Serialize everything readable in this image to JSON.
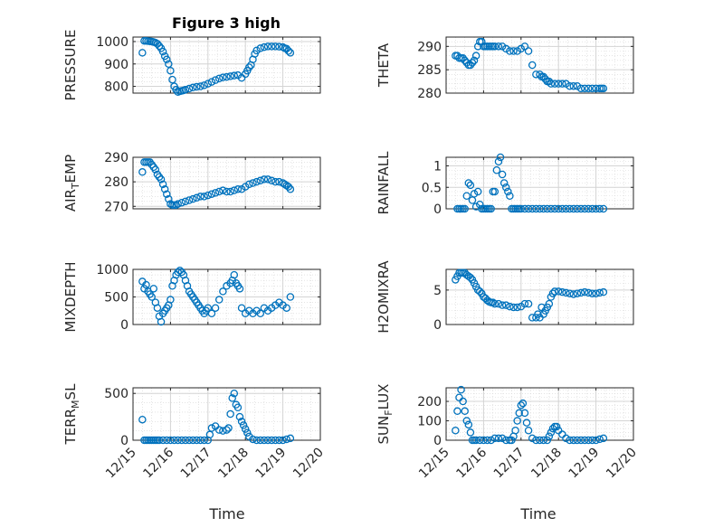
{
  "figure": {
    "title": "Figure 3 high"
  },
  "colors": {
    "marker": "#0072BD",
    "grid": "#d4d4d4",
    "axis": "#262626"
  },
  "chart_data": [
    {
      "type": "scatter",
      "ylabel": "PRESSURE",
      "ylim": [
        770,
        1020
      ],
      "yticks": [
        800,
        900,
        1000
      ],
      "xlim": [
        0,
        5
      ],
      "grid": true,
      "x": [
        0.25,
        0.3,
        0.35,
        0.4,
        0.45,
        0.5,
        0.55,
        0.6,
        0.65,
        0.7,
        0.75,
        0.8,
        0.85,
        0.9,
        0.95,
        1.0,
        1.05,
        1.1,
        1.15,
        1.2,
        1.25,
        1.3,
        1.35,
        1.4,
        1.5,
        1.6,
        1.7,
        1.8,
        1.9,
        2.0,
        2.1,
        2.2,
        2.3,
        2.4,
        2.5,
        2.6,
        2.7,
        2.8,
        2.9,
        3.0,
        3.05,
        3.1,
        3.15,
        3.2,
        3.25,
        3.3,
        3.4,
        3.5,
        3.6,
        3.7,
        3.8,
        3.9,
        4.0,
        4.05,
        4.1,
        4.15,
        4.2
      ],
      "y": [
        950,
        1003,
        1003,
        1002,
        1001,
        1000,
        998,
        995,
        990,
        980,
        970,
        955,
        935,
        920,
        900,
        870,
        830,
        800,
        785,
        775,
        778,
        780,
        782,
        785,
        790,
        795,
        798,
        800,
        805,
        812,
        820,
        828,
        835,
        840,
        842,
        845,
        848,
        850,
        838,
        855,
        870,
        885,
        895,
        920,
        945,
        960,
        970,
        975,
        978,
        978,
        978,
        977,
        975,
        970,
        968,
        958,
        950
      ]
    },
    {
      "type": "scatter",
      "ylabel": "THETA",
      "ylim": [
        280,
        292
      ],
      "yticks": [
        280,
        285,
        290
      ],
      "xlim": [
        0,
        5
      ],
      "grid": true,
      "x": [
        0.25,
        0.3,
        0.35,
        0.4,
        0.45,
        0.5,
        0.55,
        0.6,
        0.65,
        0.7,
        0.75,
        0.8,
        0.85,
        0.9,
        0.95,
        1.0,
        1.05,
        1.1,
        1.15,
        1.2,
        1.25,
        1.3,
        1.4,
        1.5,
        1.6,
        1.7,
        1.8,
        1.9,
        2.0,
        2.1,
        2.2,
        2.3,
        2.4,
        2.5,
        2.55,
        2.6,
        2.65,
        2.7,
        2.75,
        2.8,
        2.9,
        3.0,
        3.1,
        3.2,
        3.3,
        3.4,
        3.5,
        3.6,
        3.7,
        3.8,
        3.9,
        4.0,
        4.1,
        4.15,
        4.2
      ],
      "y": [
        288,
        288,
        287.5,
        287.5,
        287.5,
        287,
        286.5,
        286,
        286,
        286.5,
        287,
        288,
        290,
        291,
        291,
        290,
        290,
        290,
        290,
        290,
        290,
        290,
        290,
        290,
        289.5,
        289,
        289,
        289,
        289.5,
        290,
        289,
        286,
        284,
        284,
        283.5,
        283.5,
        283,
        282.5,
        282.5,
        282,
        282,
        282,
        282,
        282,
        281.5,
        281.5,
        281.5,
        281,
        281,
        281,
        281,
        281,
        281,
        281,
        281
      ]
    },
    {
      "type": "scatter",
      "ylabel": "AIR_TEMP",
      "ylabel_parts": {
        "main": "AIR",
        "sub": "T",
        "rest": "EMP"
      },
      "ylim": [
        269,
        290
      ],
      "yticks": [
        270,
        280,
        290
      ],
      "xlim": [
        0,
        5
      ],
      "grid": true,
      "x": [
        0.25,
        0.3,
        0.35,
        0.4,
        0.45,
        0.5,
        0.55,
        0.6,
        0.65,
        0.7,
        0.75,
        0.8,
        0.85,
        0.9,
        0.95,
        1.0,
        1.05,
        1.1,
        1.15,
        1.2,
        1.3,
        1.4,
        1.5,
        1.6,
        1.7,
        1.8,
        1.9,
        2.0,
        2.1,
        2.2,
        2.3,
        2.4,
        2.5,
        2.6,
        2.7,
        2.8,
        2.9,
        3.0,
        3.1,
        3.2,
        3.3,
        3.4,
        3.5,
        3.6,
        3.7,
        3.8,
        3.9,
        4.0,
        4.05,
        4.1,
        4.15,
        4.2
      ],
      "y": [
        284,
        288,
        288,
        288,
        288,
        287,
        286,
        285,
        283,
        282,
        281,
        279,
        277,
        275,
        273,
        271,
        270.5,
        270.5,
        270.5,
        271,
        271.5,
        272,
        272.5,
        273,
        273.5,
        274,
        274,
        274.5,
        275,
        275.5,
        276,
        276.5,
        276,
        276,
        276.5,
        277,
        277,
        278,
        279,
        279.5,
        280,
        280.5,
        281,
        281,
        280.5,
        280,
        280,
        279.5,
        279,
        278.5,
        278,
        277
      ]
    },
    {
      "type": "scatter",
      "ylabel": "RAINFALL",
      "ylim": [
        0,
        1.2
      ],
      "yticks": [
        0,
        0.5,
        1
      ],
      "xlim": [
        0,
        5
      ],
      "grid": true,
      "x": [
        0.3,
        0.35,
        0.4,
        0.45,
        0.5,
        0.55,
        0.6,
        0.65,
        0.7,
        0.75,
        0.8,
        0.85,
        0.9,
        0.95,
        1.0,
        1.05,
        1.1,
        1.15,
        1.2,
        1.25,
        1.3,
        1.35,
        1.4,
        1.45,
        1.5,
        1.55,
        1.6,
        1.65,
        1.7,
        1.75,
        1.8,
        1.85,
        1.9,
        1.95,
        2.0,
        2.1,
        2.2,
        2.3,
        2.4,
        2.5,
        2.6,
        2.7,
        2.8,
        2.9,
        3.0,
        3.1,
        3.2,
        3.3,
        3.4,
        3.5,
        3.6,
        3.7,
        3.8,
        3.9,
        4.0,
        4.1,
        4.2
      ],
      "y": [
        0,
        0,
        0,
        0,
        0,
        0.3,
        0.6,
        0.55,
        0.2,
        0.35,
        0.05,
        0.4,
        0.1,
        0,
        0,
        0,
        0,
        0,
        0,
        0.4,
        0.4,
        0.9,
        1.1,
        1.2,
        0.8,
        0.6,
        0.5,
        0.4,
        0.3,
        0,
        0,
        0,
        0,
        0,
        0,
        0,
        0,
        0,
        0,
        0,
        0,
        0,
        0,
        0,
        0,
        0,
        0,
        0,
        0,
        0,
        0,
        0,
        0,
        0,
        0,
        0,
        0
      ]
    },
    {
      "type": "scatter",
      "ylabel": "MIXDEPTH",
      "ylim": [
        0,
        1000
      ],
      "yticks": [
        0,
        500,
        1000
      ],
      "xlim": [
        0,
        5
      ],
      "grid": true,
      "x": [
        0.25,
        0.3,
        0.35,
        0.4,
        0.45,
        0.5,
        0.55,
        0.6,
        0.65,
        0.7,
        0.75,
        0.8,
        0.85,
        0.9,
        0.95,
        1.0,
        1.05,
        1.1,
        1.15,
        1.2,
        1.25,
        1.3,
        1.35,
        1.4,
        1.45,
        1.5,
        1.55,
        1.6,
        1.65,
        1.7,
        1.75,
        1.8,
        1.85,
        1.9,
        1.95,
        2.0,
        2.1,
        2.2,
        2.3,
        2.4,
        2.5,
        2.6,
        2.65,
        2.7,
        2.75,
        2.8,
        2.85,
        2.9,
        3.0,
        3.1,
        3.2,
        3.3,
        3.4,
        3.5,
        3.6,
        3.7,
        3.8,
        3.9,
        4.0,
        4.1,
        4.2
      ],
      "y": [
        780,
        650,
        720,
        600,
        550,
        500,
        650,
        400,
        300,
        150,
        50,
        200,
        250,
        300,
        350,
        450,
        700,
        800,
        900,
        950,
        980,
        950,
        900,
        800,
        700,
        600,
        550,
        500,
        450,
        400,
        350,
        300,
        250,
        200,
        250,
        300,
        200,
        300,
        450,
        600,
        700,
        750,
        800,
        900,
        750,
        700,
        650,
        300,
        200,
        250,
        200,
        250,
        200,
        300,
        250,
        300,
        350,
        400,
        350,
        300,
        500
      ]
    },
    {
      "type": "scatter",
      "ylabel": "H2OMIXRA",
      "ylim": [
        0,
        8
      ],
      "yticks": [
        0,
        5
      ],
      "xlim": [
        0,
        5
      ],
      "grid": true,
      "x": [
        0.25,
        0.3,
        0.35,
        0.4,
        0.45,
        0.5,
        0.55,
        0.6,
        0.65,
        0.7,
        0.75,
        0.8,
        0.85,
        0.9,
        0.95,
        1.0,
        1.05,
        1.1,
        1.15,
        1.2,
        1.25,
        1.3,
        1.4,
        1.5,
        1.6,
        1.7,
        1.8,
        1.9,
        2.0,
        2.1,
        2.2,
        2.3,
        2.4,
        2.45,
        2.5,
        2.55,
        2.6,
        2.65,
        2.7,
        2.75,
        2.8,
        2.85,
        2.9,
        3.0,
        3.1,
        3.2,
        3.3,
        3.4,
        3.5,
        3.6,
        3.7,
        3.8,
        3.9,
        4.0,
        4.1,
        4.2
      ],
      "y": [
        6.5,
        7,
        7.5,
        7.5,
        7.5,
        7.5,
        7.2,
        7,
        6.8,
        6.5,
        6,
        5.5,
        5,
        4.8,
        4.5,
        4,
        3.8,
        3.5,
        3.3,
        3.2,
        3.2,
        3,
        3,
        2.8,
        2.8,
        2.6,
        2.5,
        2.5,
        2.6,
        3,
        3,
        1,
        1,
        1.5,
        1,
        2.5,
        1.5,
        2,
        2.5,
        3,
        4,
        4.5,
        4.8,
        4.8,
        4.7,
        4.6,
        4.5,
        4.4,
        4.5,
        4.6,
        4.7,
        4.6,
        4.5,
        4.5,
        4.6,
        4.7
      ]
    },
    {
      "type": "scatter",
      "ylabel": "TERR_MSL",
      "ylabel_parts": {
        "main": "TERR",
        "sub": "M",
        "rest": "SL"
      },
      "ylim": [
        0,
        560
      ],
      "yticks": [
        0,
        500
      ],
      "xlim": [
        0,
        5
      ],
      "grid": true,
      "x": [
        0.25,
        0.3,
        0.35,
        0.4,
        0.45,
        0.5,
        0.55,
        0.6,
        0.65,
        0.7,
        0.8,
        0.9,
        1.0,
        1.1,
        1.2,
        1.3,
        1.4,
        1.5,
        1.6,
        1.7,
        1.8,
        1.9,
        2.0,
        2.05,
        2.1,
        2.2,
        2.3,
        2.4,
        2.5,
        2.55,
        2.6,
        2.65,
        2.7,
        2.75,
        2.8,
        2.85,
        2.9,
        2.95,
        3.0,
        3.05,
        3.1,
        3.2,
        3.3,
        3.4,
        3.5,
        3.6,
        3.7,
        3.8,
        3.9,
        4.0,
        4.1,
        4.2
      ],
      "y": [
        220,
        0,
        0,
        0,
        0,
        0,
        0,
        0,
        0,
        0,
        0,
        0,
        0,
        0,
        0,
        0,
        0,
        0,
        0,
        0,
        0,
        0,
        0,
        60,
        130,
        150,
        110,
        100,
        110,
        130,
        280,
        450,
        500,
        380,
        350,
        250,
        200,
        160,
        120,
        80,
        40,
        10,
        0,
        0,
        0,
        0,
        0,
        0,
        0,
        0,
        10,
        20
      ]
    },
    {
      "type": "scatter",
      "ylabel": "SUN_FLUX",
      "ylabel_parts": {
        "main": "SUN",
        "sub": "F",
        "rest": "LUX"
      },
      "ylim": [
        0,
        270
      ],
      "yticks": [
        0,
        100,
        200
      ],
      "xlim": [
        0,
        5
      ],
      "grid": true,
      "x": [
        0.25,
        0.3,
        0.35,
        0.4,
        0.45,
        0.5,
        0.55,
        0.6,
        0.65,
        0.7,
        0.75,
        0.8,
        0.9,
        1.0,
        1.1,
        1.2,
        1.3,
        1.4,
        1.5,
        1.6,
        1.7,
        1.75,
        1.8,
        1.85,
        1.9,
        1.95,
        2.0,
        2.05,
        2.1,
        2.15,
        2.2,
        2.3,
        2.4,
        2.5,
        2.6,
        2.7,
        2.75,
        2.8,
        2.85,
        2.9,
        2.95,
        3.0,
        3.1,
        3.2,
        3.3,
        3.4,
        3.5,
        3.6,
        3.7,
        3.8,
        3.9,
        4.0,
        4.1,
        4.2
      ],
      "y": [
        50,
        150,
        220,
        260,
        200,
        150,
        100,
        80,
        40,
        0,
        0,
        0,
        0,
        0,
        0,
        0,
        10,
        10,
        10,
        0,
        0,
        0,
        20,
        50,
        100,
        140,
        180,
        190,
        140,
        90,
        50,
        10,
        0,
        0,
        0,
        0,
        20,
        40,
        60,
        70,
        70,
        50,
        30,
        10,
        0,
        0,
        0,
        0,
        0,
        0,
        0,
        0,
        5,
        10
      ]
    }
  ],
  "x_axis": {
    "tick_labels": [
      "12/15",
      "12/16",
      "12/17",
      "12/18",
      "12/19",
      "12/20"
    ],
    "label": "Time"
  }
}
